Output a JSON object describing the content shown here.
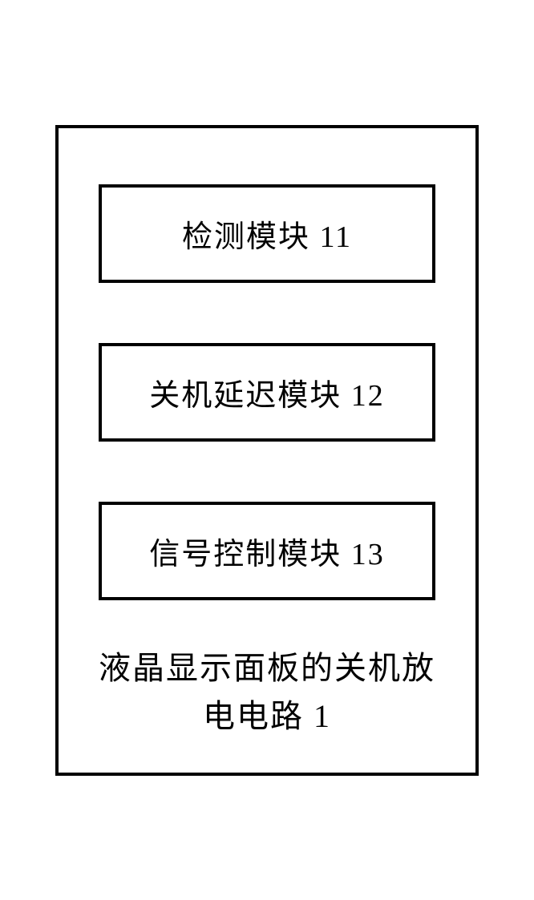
{
  "diagram": {
    "title_line1": "液晶显示面板的关机放",
    "title_line2": "电电路 1",
    "modules": [
      {
        "label": "检测模块 11"
      },
      {
        "label": "关机延迟模块 12"
      },
      {
        "label": "信号控制模块 13"
      }
    ],
    "outer_border_color": "#000000",
    "inner_border_color": "#000000",
    "background_color": "#ffffff",
    "text_color": "#000000",
    "module_fontsize": 38,
    "title_fontsize": 40,
    "border_width": 4
  }
}
